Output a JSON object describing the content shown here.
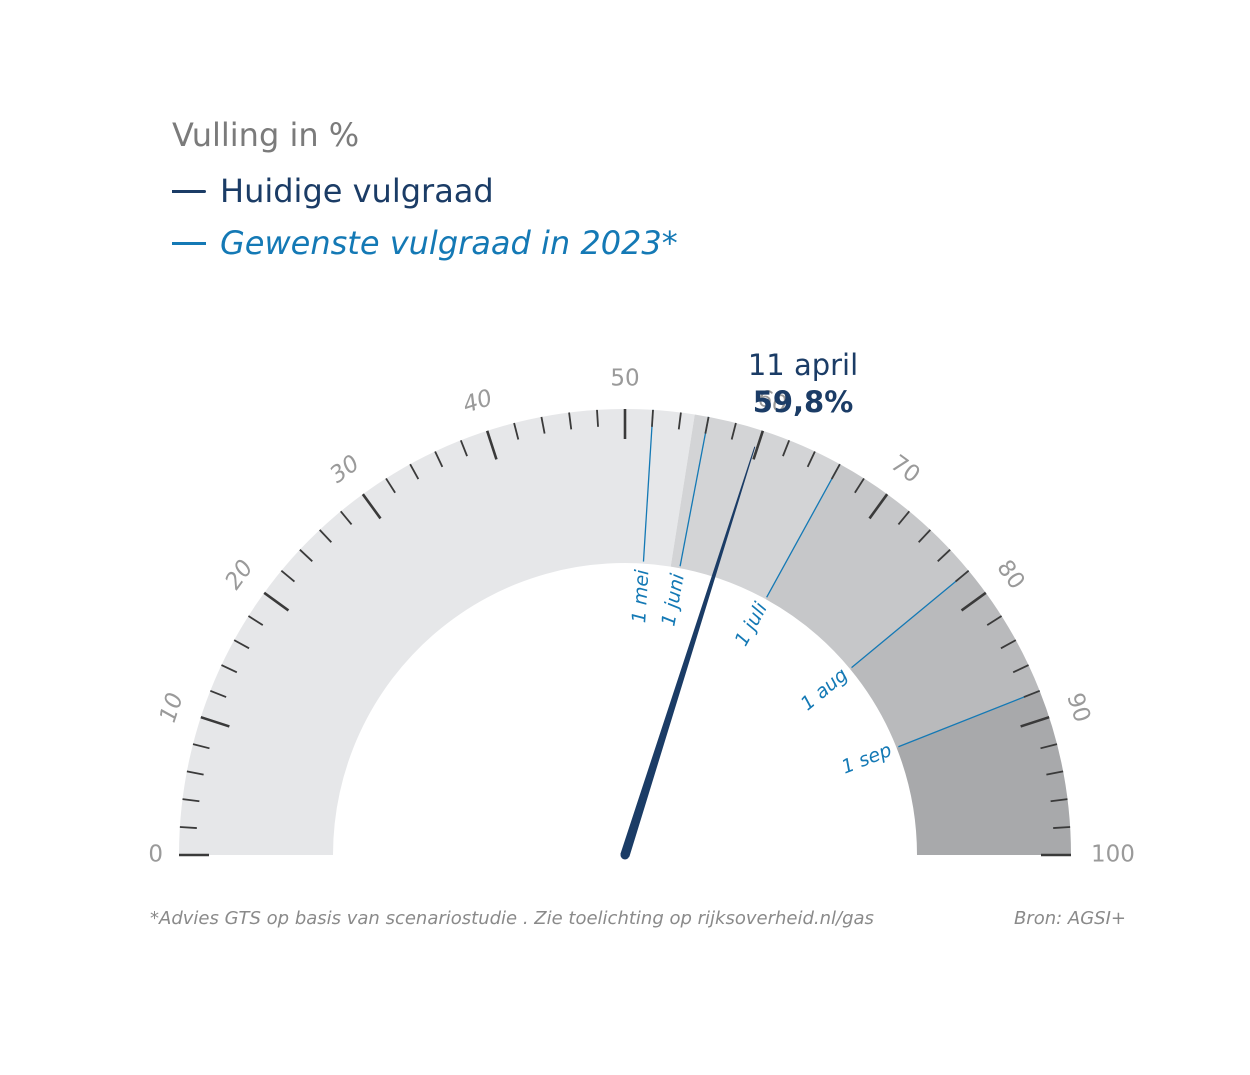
{
  "legend": {
    "title": "Vulling in %",
    "current_label": "Huidige vulgraad",
    "target_label": "Gewenste vulgraad in 2023*"
  },
  "footnote": "*Advies GTS op basis van scenariostudie . Zie toelichting op rijksoverheid.nl/gas",
  "source": "Bron: AGSI+",
  "chart_data": {
    "type": "gauge",
    "range": [
      0,
      100
    ],
    "scale_labels": [
      "0",
      "10",
      "20",
      "30",
      "40",
      "50",
      "60",
      "70",
      "80",
      "90",
      "100"
    ],
    "scale_label_values": [
      0,
      10,
      20,
      30,
      40,
      50,
      60,
      70,
      80,
      90,
      100
    ],
    "current": {
      "date": "11 april",
      "value_label": "59,8%",
      "value": 59.8
    },
    "targets": [
      {
        "label": "1 mei",
        "value": 52
      },
      {
        "label": "1 juni",
        "value": 56
      },
      {
        "label": "1 juli",
        "value": 66
      },
      {
        "label": "1 aug",
        "value": 78
      },
      {
        "label": "1 sep",
        "value": 88
      }
    ],
    "bands": [
      {
        "from": 0,
        "to": 55,
        "color": "#e6e7e9"
      },
      {
        "from": 55,
        "to": 66,
        "color": "#d3d4d6"
      },
      {
        "from": 66,
        "to": 78,
        "color": "#c6c7c9"
      },
      {
        "from": 78,
        "to": 88,
        "color": "#b9babc"
      },
      {
        "from": 88,
        "to": 100,
        "color": "#a8a9ab"
      }
    ],
    "colors": {
      "needle": "#1b3c66",
      "target_line": "#1479b5",
      "tick": "#3a3a3a",
      "scale_label": "#9a9a9a",
      "current_value": "#1b3c66"
    }
  }
}
